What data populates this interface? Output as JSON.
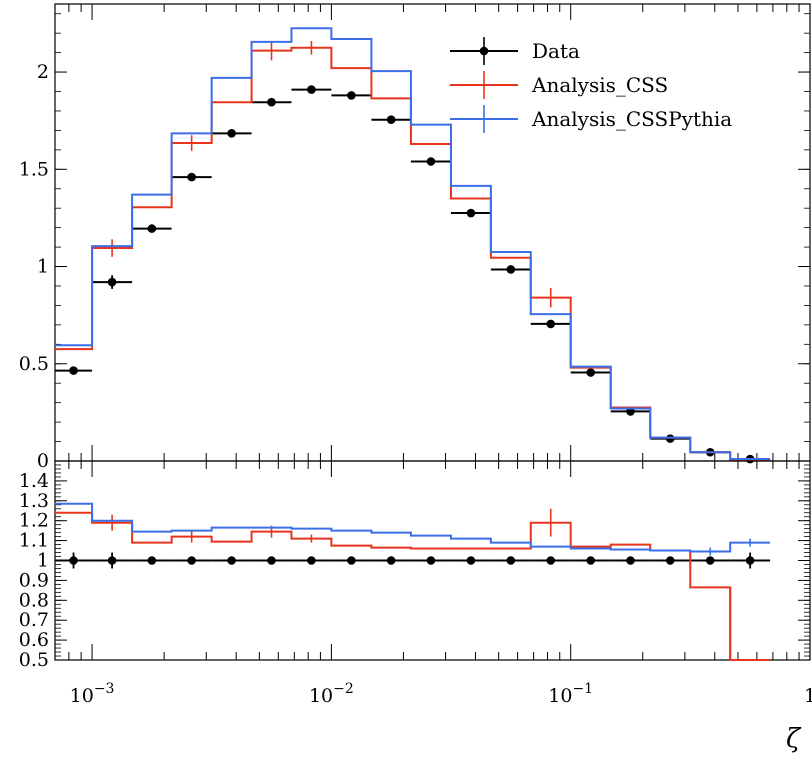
{
  "chart_data": {
    "type": "line",
    "xlabel": "ζ",
    "xscale": "log",
    "xlim": [
      0.0007,
      1.0
    ],
    "x_ticks": [
      {
        "value": 0.001,
        "base": "10",
        "exp": "−3"
      },
      {
        "value": 0.01,
        "base": "10",
        "exp": "−2"
      },
      {
        "value": 0.1,
        "base": "10",
        "exp": "−1"
      },
      {
        "value": 1.0,
        "base": "1",
        "exp": ""
      }
    ],
    "bin_edges": [
      0.0007,
      0.001,
      0.00147,
      0.00215,
      0.00316,
      0.00464,
      0.00681,
      0.01,
      0.0147,
      0.0215,
      0.0316,
      0.0464,
      0.0681,
      0.1,
      0.147,
      0.215,
      0.316,
      0.464,
      0.681,
      1.0
    ],
    "main": {
      "ylim": [
        0,
        2.35
      ],
      "y_ticks": [
        0,
        0.5,
        1,
        1.5,
        2
      ],
      "y_tick_labels": [
        "0",
        "0.5",
        "1",
        "1.5",
        "2"
      ]
    },
    "ratio": {
      "ylim": [
        0.5,
        1.5
      ],
      "y_ticks": [
        0.5,
        0.6,
        0.7,
        0.8,
        0.9,
        1,
        1.1,
        1.2,
        1.3,
        1.4
      ],
      "y_tick_labels": [
        "0.5",
        "0.6",
        "0.7",
        "0.8",
        "0.9",
        "1",
        "1.1",
        "1.2",
        "1.3",
        "1.4"
      ]
    },
    "legend": {
      "position": "top-right"
    },
    "series": [
      {
        "name": "Data",
        "color": "#000000",
        "style": "points",
        "values": [
          0.465,
          0.92,
          1.195,
          1.46,
          1.685,
          1.845,
          1.91,
          1.88,
          1.755,
          1.54,
          1.275,
          0.985,
          0.705,
          0.455,
          0.255,
          0.115,
          0.045,
          0.01
        ],
        "errors": [
          0.02,
          0.035,
          0.015,
          0.015,
          0.01,
          0.01,
          0.01,
          0.01,
          0.01,
          0.01,
          0.01,
          0.01,
          0.01,
          0.01,
          0.01,
          0.01,
          0.005,
          0.005
        ],
        "ratio_values": [
          1,
          1,
          1,
          1,
          1,
          1,
          1,
          1,
          1,
          1,
          1,
          1,
          1,
          1,
          1,
          1,
          1,
          1
        ],
        "ratio_errors": [
          0.04,
          0.04,
          0.01,
          0.01,
          0.01,
          0.01,
          0.01,
          0.01,
          0.01,
          0.01,
          0.01,
          0.01,
          0.01,
          0.01,
          0.01,
          0.01,
          0.02,
          0.04
        ]
      },
      {
        "name": "Analysis_CSS",
        "color": "#e8341c",
        "style": "step",
        "values": [
          0.575,
          1.095,
          1.305,
          1.635,
          1.845,
          2.11,
          2.125,
          2.02,
          1.865,
          1.63,
          1.35,
          1.045,
          0.84,
          0.48,
          0.275,
          0.12,
          0.045,
          0.005
        ],
        "errors": [
          0.0,
          0.045,
          0.0,
          0.04,
          0.0,
          0.05,
          0.035,
          0.0,
          0.0,
          0.0,
          0.0,
          0.0,
          0.05,
          0.0,
          0.0,
          0.0,
          0.0,
          0.0
        ],
        "ratio_values": [
          1.24,
          1.19,
          1.09,
          1.12,
          1.095,
          1.145,
          1.11,
          1.075,
          1.065,
          1.06,
          1.06,
          1.06,
          1.19,
          1.07,
          1.08,
          1.05,
          0.865,
          0.45
        ],
        "ratio_errors": [
          0.0,
          0.04,
          0.0,
          0.03,
          0.0,
          0.03,
          0.02,
          0.0,
          0.0,
          0.0,
          0.0,
          0.0,
          0.07,
          0.0,
          0.0,
          0.0,
          0.0,
          0.0
        ]
      },
      {
        "name": "Analysis_CSSPythia",
        "color": "#3b6ee8",
        "style": "step",
        "values": [
          0.595,
          1.105,
          1.37,
          1.685,
          1.97,
          2.155,
          2.225,
          2.17,
          2.005,
          1.73,
          1.415,
          1.075,
          0.755,
          0.485,
          0.27,
          0.12,
          0.045,
          0.01
        ],
        "errors": [
          0.0,
          0.0,
          0.0,
          0.0,
          0.0,
          0.0,
          0.0,
          0.0,
          0.0,
          0.0,
          0.0,
          0.0,
          0.0,
          0.0,
          0.0,
          0.0,
          0.0,
          0.0
        ],
        "ratio_values": [
          1.285,
          1.2,
          1.145,
          1.15,
          1.165,
          1.165,
          1.16,
          1.15,
          1.14,
          1.125,
          1.11,
          1.09,
          1.07,
          1.06,
          1.055,
          1.05,
          1.045,
          1.09
        ],
        "ratio_errors": [
          0.0,
          0.0,
          0.0,
          0.0,
          0.0,
          0.0,
          0.0,
          0.0,
          0.0,
          0.0,
          0.0,
          0.0,
          0.0,
          0.0,
          0.0,
          0.0,
          0.02,
          0.02
        ]
      }
    ]
  }
}
